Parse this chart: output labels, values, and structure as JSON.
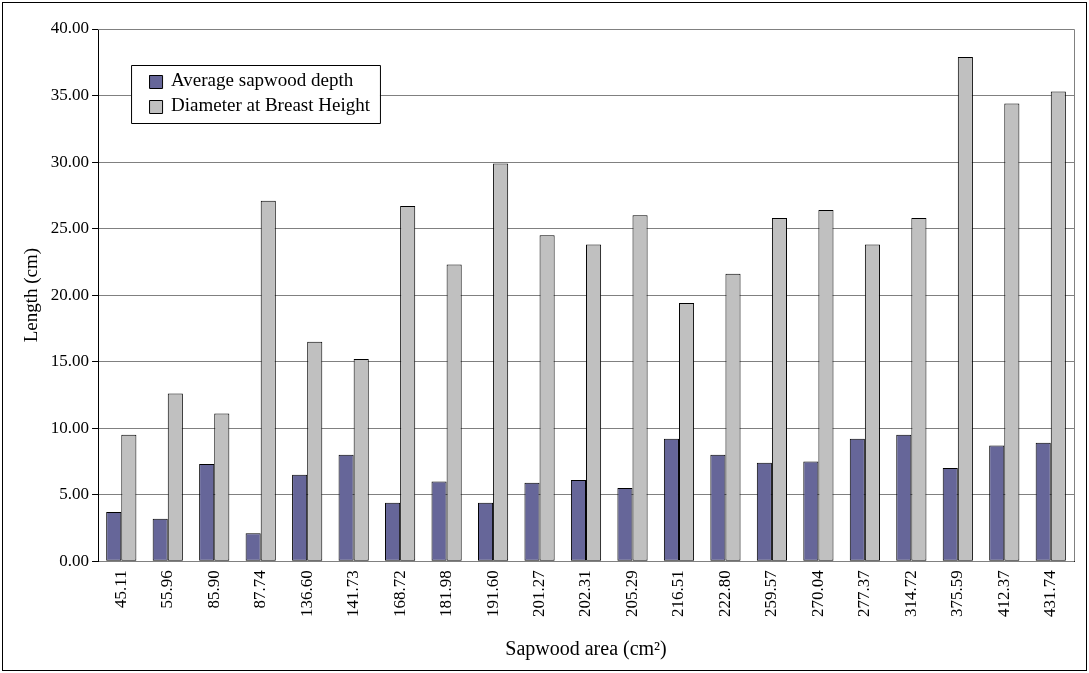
{
  "chart_data": {
    "type": "bar",
    "xlabel": "Sapwood area (cm²)",
    "ylabel": "Length (cm)",
    "categories": [
      "45.11",
      "55.96",
      "85.90",
      "87.74",
      "136.60",
      "141.73",
      "168.72",
      "181.98",
      "191.60",
      "201.27",
      "202.31",
      "205.29",
      "216.51",
      "222.80",
      "259.57",
      "270.04",
      "277.37",
      "314.72",
      "375.59",
      "412.37",
      "431.74"
    ],
    "series": [
      {
        "name": "Average sapwood depth",
        "color": "#666699",
        "values": [
          3.7,
          3.2,
          7.3,
          2.1,
          6.5,
          8.0,
          4.4,
          6.0,
          4.4,
          5.9,
          6.1,
          5.5,
          9.2,
          8.0,
          7.4,
          7.5,
          9.2,
          9.5,
          7.0,
          8.7,
          8.9
        ]
      },
      {
        "name": "Diameter at Breast Height",
        "color": "#c0c0c0",
        "values": [
          9.5,
          12.6,
          11.1,
          27.1,
          16.5,
          15.2,
          26.7,
          22.3,
          29.9,
          24.5,
          23.8,
          26.0,
          19.4,
          21.6,
          25.8,
          26.4,
          23.8,
          25.8,
          37.9,
          34.4,
          35.3
        ]
      }
    ],
    "ylim": [
      0,
      40
    ],
    "yticks": [
      {
        "value": 0,
        "label": "0.00"
      },
      {
        "value": 5,
        "label": "5.00"
      },
      {
        "value": 10,
        "label": "10.00"
      },
      {
        "value": 15,
        "label": "15.00"
      },
      {
        "value": 20,
        "label": "20.00"
      },
      {
        "value": 25,
        "label": "25.00"
      },
      {
        "value": 30,
        "label": "30.00"
      },
      {
        "value": 35,
        "label": "35.00"
      },
      {
        "value": 40,
        "label": "40.00"
      }
    ],
    "grid": "y",
    "legend": "top left"
  }
}
